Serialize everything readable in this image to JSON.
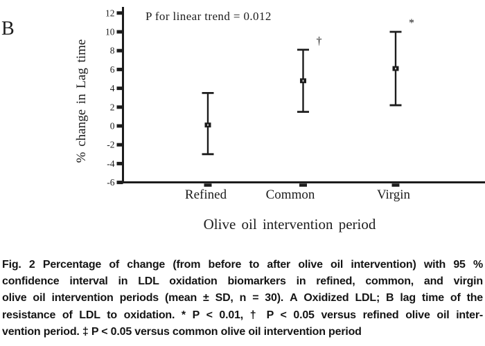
{
  "colors": {
    "ink": "#1c1c1c",
    "background": "#ffffff"
  },
  "panel_label": "B",
  "chart_data": {
    "type": "errorbar",
    "title": "",
    "annotation": "P for linear trend = 0.012",
    "xlabel": "Olive oil intervention period",
    "ylabel": "% change in Lag time",
    "categories": [
      "Refined",
      "Common",
      "Virgin"
    ],
    "means": [
      0.1,
      4.8,
      6.1
    ],
    "ci_low": [
      -3.0,
      1.5,
      2.2
    ],
    "ci_high": [
      3.5,
      8.1,
      10.0
    ],
    "significance": [
      "",
      "†",
      "*"
    ],
    "yticks": [
      12,
      10,
      8,
      6,
      4,
      2,
      0,
      -2,
      -4,
      -6
    ],
    "ylim": [
      -6,
      12.6
    ],
    "grid": false,
    "legend": "none"
  },
  "caption": {
    "lines": [
      [
        {
          "t": "Fig. 2",
          "b": true
        },
        {
          "t": "   Percentage of change (from before to after olive oil intervention) with 95 %",
          "b": false
        }
      ],
      [
        {
          "t": "confidence interval in LDL oxidation biomarkers in refined, common, and virgin",
          "b": false
        }
      ],
      [
        {
          "t": "olive oil intervention periods (mean ± SD, n = 30). ",
          "b": false
        },
        {
          "t": "A",
          "b": true
        },
        {
          "t": " Oxidized LDL; ",
          "b": false
        },
        {
          "t": "B",
          "b": true
        },
        {
          "t": " lag time of the",
          "b": false
        }
      ],
      [
        {
          "t": "resistance of LDL to oxidation. * P < 0.01, † P < 0.05 versus refined olive oil inter-",
          "b": false
        }
      ],
      [
        {
          "t": "vention period. ‡ P < 0.05 versus common olive oil intervention period",
          "b": false
        }
      ]
    ]
  }
}
